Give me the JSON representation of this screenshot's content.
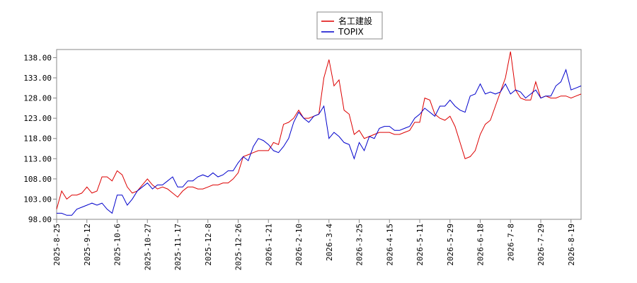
{
  "chart_data": {
    "type": "line",
    "categories": [
      "2025-8-25",
      null,
      null,
      null,
      null,
      null,
      "2025-9-12",
      null,
      null,
      null,
      null,
      null,
      "2025-10-6",
      null,
      null,
      null,
      null,
      null,
      "2025-10-27",
      null,
      null,
      null,
      null,
      null,
      "2025-11-17",
      null,
      null,
      null,
      null,
      null,
      "2025-12-8",
      null,
      null,
      null,
      null,
      null,
      "2025-12-26",
      null,
      null,
      null,
      null,
      null,
      "2026-1-21",
      null,
      null,
      null,
      null,
      null,
      "2026-2-10",
      null,
      null,
      null,
      null,
      null,
      "2026-3-4",
      null,
      null,
      null,
      null,
      null,
      "2026-3-25",
      null,
      null,
      null,
      null,
      null,
      "2026-4-15",
      null,
      null,
      null,
      null,
      null,
      "2026-5-11",
      null,
      null,
      null,
      null,
      null,
      "2026-5-29",
      null,
      null,
      null,
      null,
      null,
      "2026-6-18",
      null,
      null,
      null,
      null,
      null,
      "2026-7-8",
      null,
      null,
      null,
      null,
      null,
      "2026-7-29",
      null,
      null,
      null,
      null,
      null,
      "2026-8-19",
      null,
      null
    ],
    "series": [
      {
        "name": "名工建設",
        "color": "#dd0000",
        "values": [
          100.5,
          105,
          103,
          104,
          104,
          104.5,
          106,
          104.5,
          105,
          108.5,
          108.5,
          107.5,
          110,
          109,
          106,
          104.5,
          105,
          106.5,
          108,
          106.5,
          105.5,
          106,
          105.5,
          104.5,
          103.5,
          105,
          106,
          106,
          105.5,
          105.5,
          106,
          106.5,
          106.5,
          107,
          107,
          108,
          109.5,
          113.5,
          114,
          114.5,
          115,
          115,
          115,
          117,
          116.5,
          121.5,
          122,
          123,
          125,
          123,
          123,
          123.5,
          124,
          133,
          137.5,
          131,
          132.5,
          125,
          124,
          119,
          120,
          118,
          118.5,
          119,
          119.5,
          119.5,
          119.5,
          119,
          119,
          119.5,
          120,
          122,
          122,
          128,
          127.5,
          124,
          123,
          122.5,
          123.5,
          121,
          117,
          113,
          113.5,
          115,
          119,
          121.5,
          122.5,
          126,
          129.5,
          133,
          139.5,
          130,
          128,
          127.5,
          127.5,
          132,
          128,
          128.5,
          128,
          128,
          128.5,
          128.5,
          128,
          128.5,
          129
        ]
      },
      {
        "name": "TOPIX",
        "color": "#0000cc",
        "values": [
          99.5,
          99.5,
          99,
          99,
          100.5,
          101,
          101.5,
          102,
          101.5,
          102,
          100.5,
          99.5,
          104,
          104,
          101.5,
          103,
          105,
          106,
          107,
          105.5,
          106.5,
          106.5,
          107.5,
          108.5,
          106,
          106,
          107.5,
          107.5,
          108.5,
          109,
          108.5,
          109.5,
          108.5,
          109,
          110,
          110,
          112,
          113.5,
          112.5,
          116,
          118,
          117.5,
          116.5,
          115,
          114.5,
          116,
          118,
          122,
          124.5,
          123,
          122,
          123.5,
          124,
          126,
          118,
          119.5,
          118.5,
          117,
          116.5,
          113,
          117,
          115,
          118.5,
          118,
          120.5,
          121,
          121,
          120,
          120,
          120.5,
          121,
          123,
          124,
          125.5,
          124.5,
          123.5,
          126,
          126,
          127.5,
          126,
          125,
          124.5,
          128.5,
          129,
          131.5,
          129,
          129.5,
          129,
          129.5,
          131.5,
          129,
          130,
          129.5,
          128,
          129,
          130,
          128,
          128.5,
          128.5,
          131,
          132,
          135,
          130,
          130.5,
          131
        ]
      }
    ],
    "ylim": [
      98,
      140
    ],
    "yticks": [
      {
        "value": 98,
        "label": "98.00"
      },
      {
        "value": 103,
        "label": "103.00"
      },
      {
        "value": 108,
        "label": "108.00"
      },
      {
        "value": 113,
        "label": "113.00"
      },
      {
        "value": 118,
        "label": "118.00"
      },
      {
        "value": 123,
        "label": "123.00"
      },
      {
        "value": 128,
        "label": "128.00"
      },
      {
        "value": 133,
        "label": "133.00"
      },
      {
        "value": 138,
        "label": "138.00"
      }
    ],
    "grid": false,
    "legend": "top"
  }
}
